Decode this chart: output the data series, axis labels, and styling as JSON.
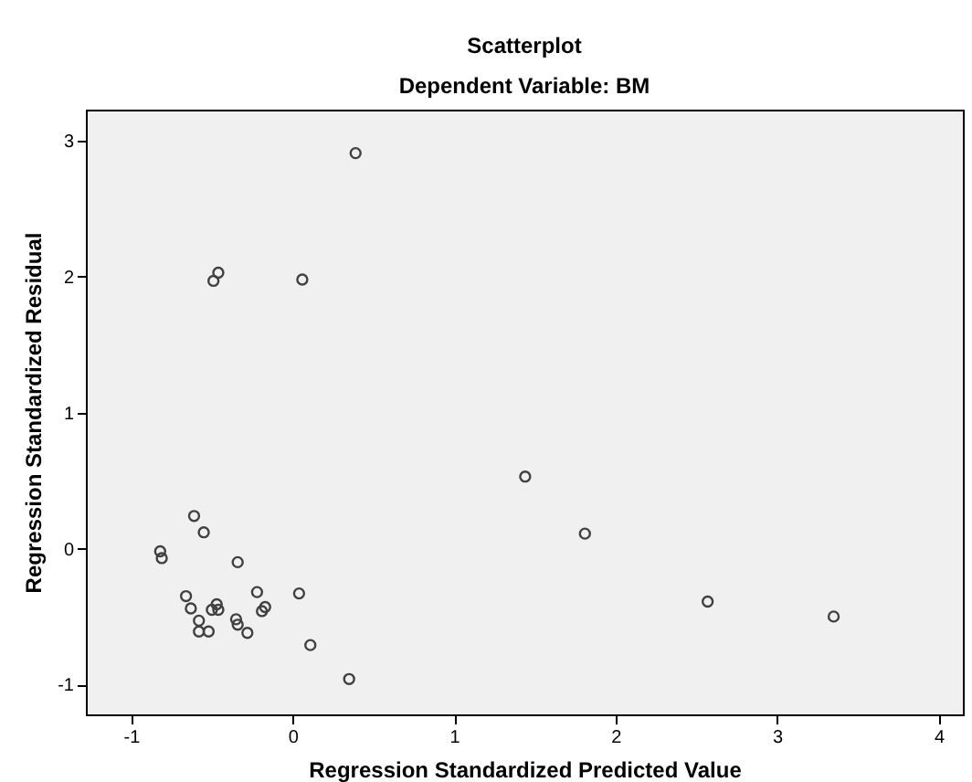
{
  "chart_data": {
    "type": "scatter",
    "title": "Scatterplot",
    "subtitle": "Dependent Variable: BM",
    "xlabel": "Regression Standardized Predicted Value",
    "ylabel": "Regression Standardized Residual",
    "x": [
      0.39,
      -0.49,
      -0.46,
      0.06,
      -0.82,
      -0.81,
      -0.61,
      -0.55,
      -0.34,
      -0.66,
      -0.63,
      -0.58,
      -0.58,
      -0.52,
      -0.5,
      -0.47,
      -0.46,
      -0.35,
      -0.34,
      -0.28,
      -0.22,
      -0.19,
      -0.17,
      0.04,
      0.11,
      0.35,
      1.44,
      1.81,
      2.57,
      3.35
    ],
    "series": [
      {
        "color": "#404040",
        "values": [
          2.91,
          1.97,
          2.03,
          1.98,
          -0.02,
          -0.07,
          0.24,
          0.12,
          -0.1,
          -0.35,
          -0.44,
          -0.53,
          -0.61,
          -0.61,
          -0.45,
          -0.41,
          -0.45,
          -0.52,
          -0.56,
          -0.62,
          -0.32,
          -0.46,
          -0.43,
          -0.33,
          -0.71,
          -0.96,
          0.53,
          0.11,
          -0.39,
          -0.5
        ]
      }
    ],
    "xlim": [
      -1.28,
      4.15
    ],
    "ylim": [
      -1.22,
      3.23
    ],
    "xticks": [
      -1,
      0,
      1,
      2,
      3,
      4
    ],
    "yticks": [
      -1,
      0,
      1,
      2,
      3
    ],
    "marker": "circle",
    "grid": false
  }
}
